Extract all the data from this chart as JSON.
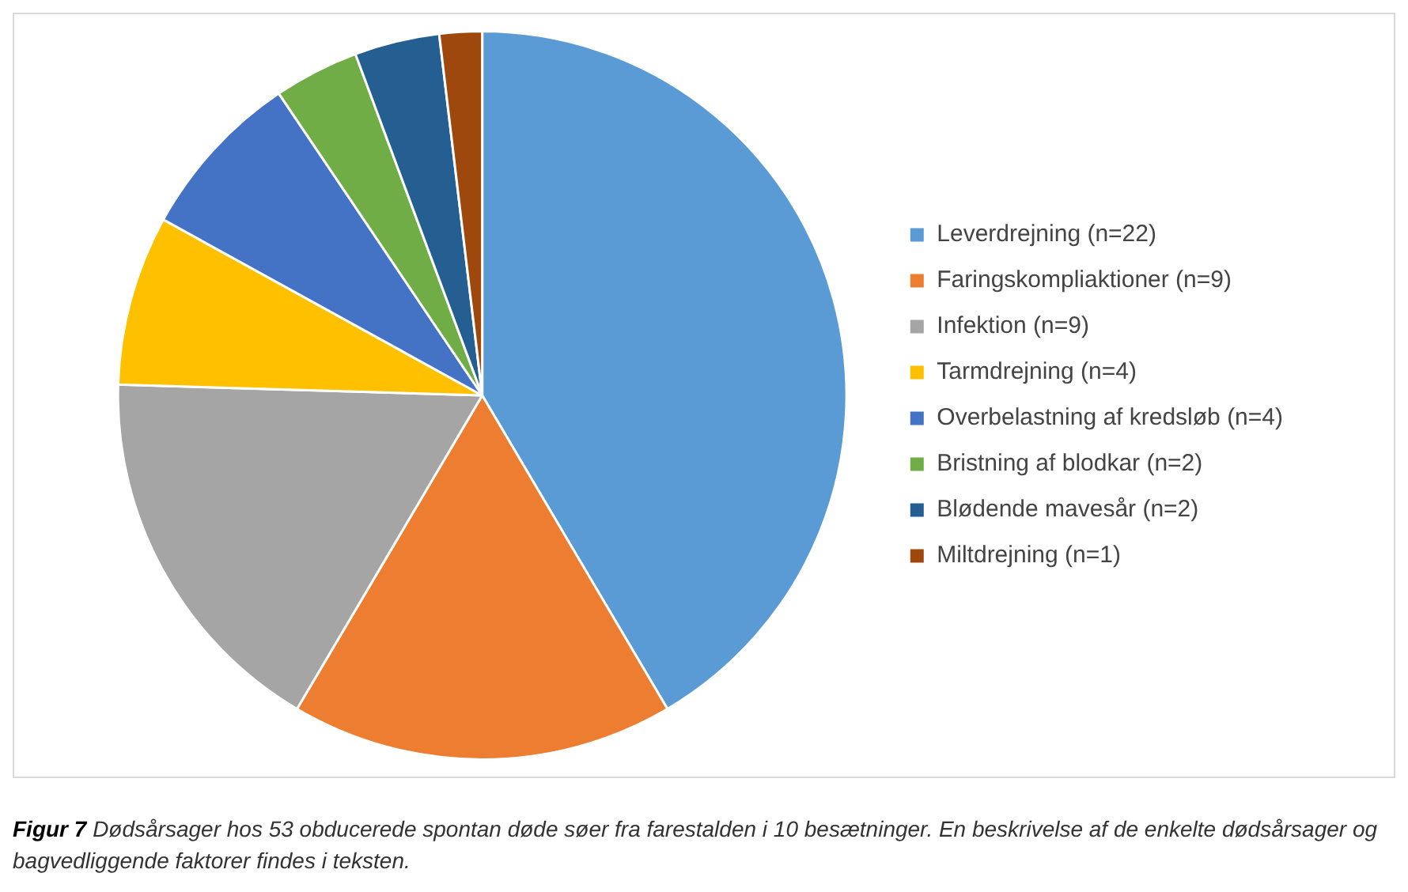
{
  "chart_data": {
    "type": "pie",
    "categories": [
      "Leverdrejning (n=22)",
      "Faringskompliaktioner (n=9)",
      "Infektion (n=9)",
      "Tarmdrejning (n=4)",
      "Overbelastning af kredsløb (n=4)",
      "Bristning af blodkar (n=2)",
      "Blødende mavesår (n=2)",
      "Miltdrejning (n=1)"
    ],
    "values": [
      22,
      9,
      9,
      4,
      4,
      2,
      2,
      1
    ],
    "colors": [
      "#5b9bd5",
      "#ed7d31",
      "#a5a5a5",
      "#ffc000",
      "#4472c4",
      "#70ad47",
      "#255e91",
      "#9e480e"
    ],
    "legend": "right",
    "annotations": [
      "Figur 7",
      "Dødsårsager hos 53 obducerede spontan døde søer fra farestalden i 10 besætninger. En beskrivelse af de enkelte dødsårsager og bagvedliggende faktorer findes i teksten."
    ]
  }
}
